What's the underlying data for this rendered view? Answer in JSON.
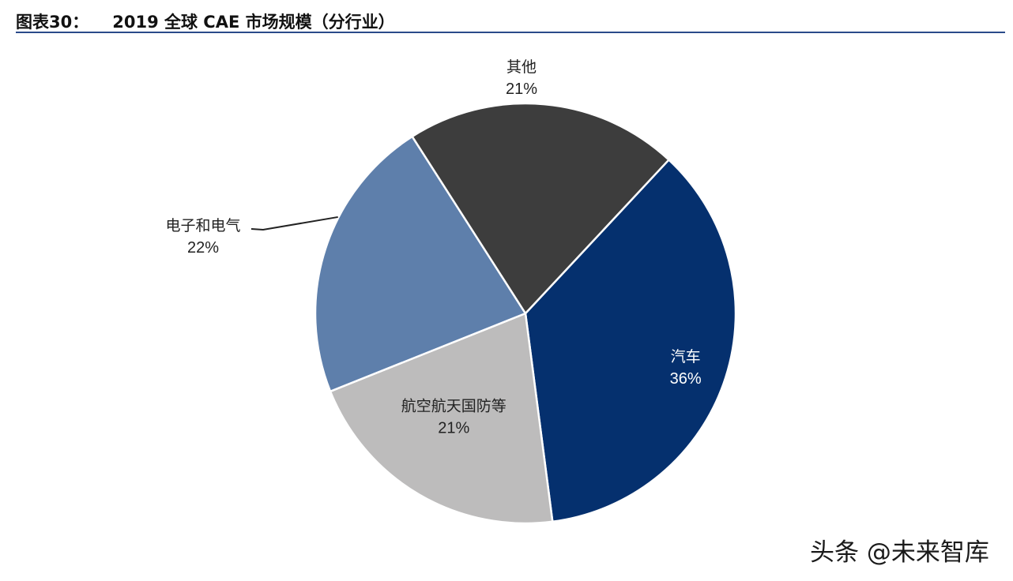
{
  "header": {
    "figure_label": "图表30：",
    "title": "2019 全球 CAE 市场规模（分行业）"
  },
  "chart_data": {
    "type": "pie",
    "title": "2019 全球 CAE 市场规模（分行业）",
    "slices": [
      {
        "label": "汽车",
        "value": 36,
        "display": "36%",
        "color": "#05306e",
        "label_color": "#ffffff"
      },
      {
        "label": "航空航天国防等",
        "value": 21,
        "display": "21%",
        "color": "#bdbcbc",
        "label_color": "#222222"
      },
      {
        "label": "电子和电气",
        "value": 22,
        "display": "22%",
        "color": "#5e7fab",
        "label_color": "#222222"
      },
      {
        "label": "其他",
        "value": 21,
        "display": "21%",
        "color": "#3d3d3d",
        "label_color": "#222222"
      }
    ]
  },
  "watermark": {
    "text": "头条 @未来智库"
  }
}
